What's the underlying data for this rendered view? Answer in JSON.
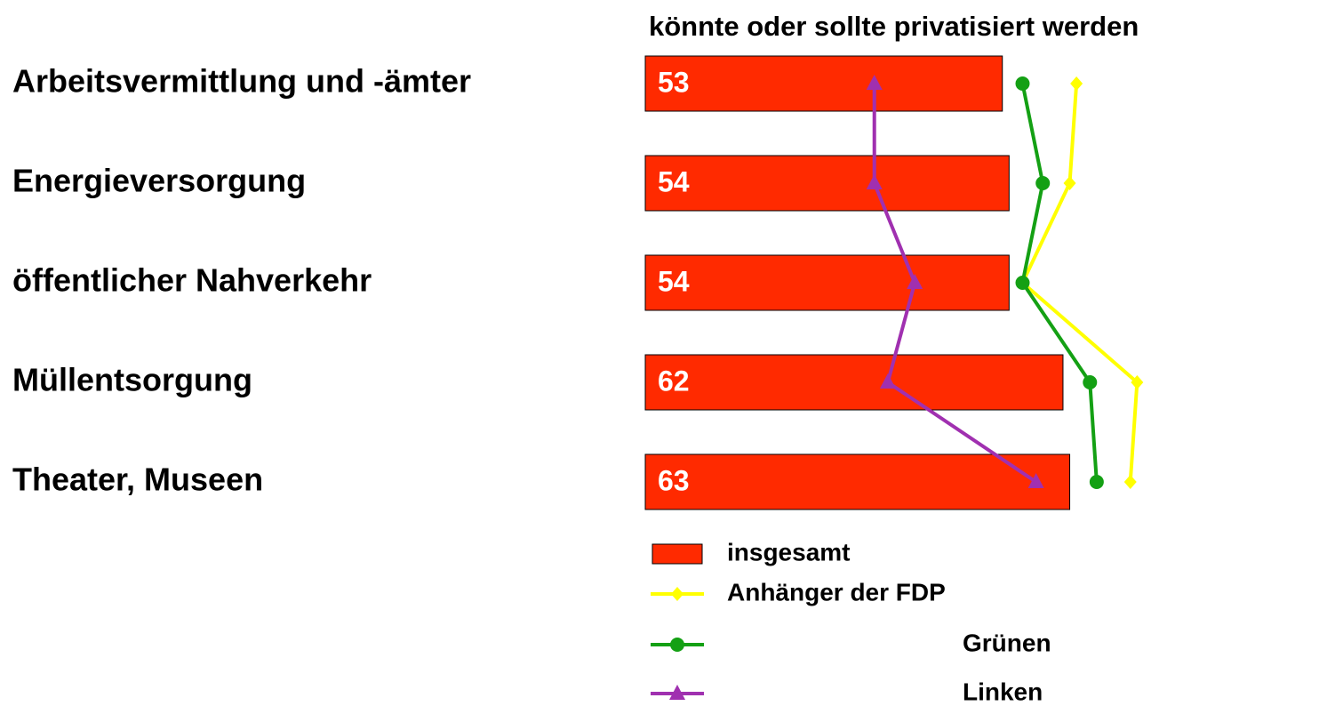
{
  "chart_data": {
    "type": "bar",
    "orientation": "horizontal",
    "title": "könnte oder sollte privatisiert werden",
    "categories": [
      "Arbeitsvermittlung und -ämter",
      "Energieversorgung",
      "öffentlicher Nahverkehr",
      "Müllentsorgung",
      "Theater, Museen"
    ],
    "xlim": [
      0,
      100
    ],
    "series": [
      {
        "name": "insgesamt",
        "type": "bar",
        "color": "#ff2a00",
        "values": [
          53,
          54,
          54,
          62,
          63
        ]
      },
      {
        "name": "Anhänger der FDP",
        "type": "line",
        "marker": "diamond",
        "color": "#ffff00",
        "values": [
          64,
          63,
          56,
          73,
          72
        ]
      },
      {
        "name": "Grünen",
        "type": "line",
        "marker": "circle",
        "color": "#14a014",
        "values": [
          56,
          59,
          56,
          66,
          67
        ]
      },
      {
        "name": "Linken",
        "type": "line",
        "marker": "triangle",
        "color": "#a030b0",
        "values": [
          34,
          34,
          40,
          36,
          58
        ]
      }
    ]
  }
}
